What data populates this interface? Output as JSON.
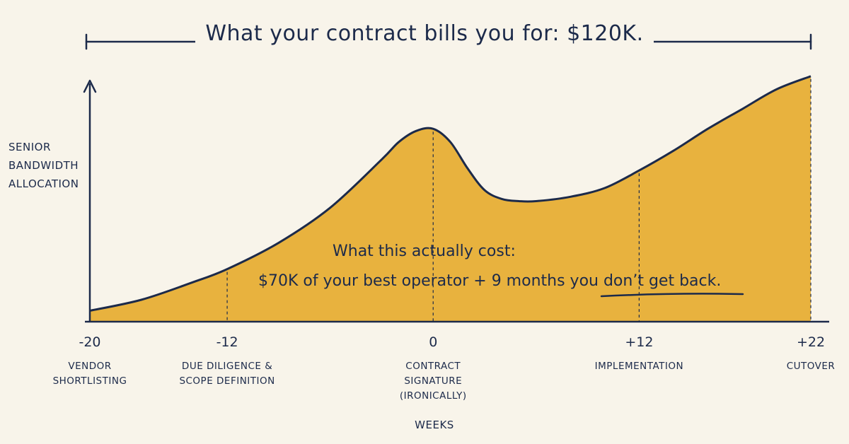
{
  "chart_data": {
    "type": "area",
    "title": "What your contract bills you for: $120K.",
    "ylabel": [
      "SENIOR",
      "BANDWIDTH",
      "ALLOCATION"
    ],
    "xlabel": "WEEKS",
    "xlim": [
      -20,
      22
    ],
    "grid": false,
    "x": [
      -20,
      -17,
      -14,
      -12,
      -9,
      -6,
      -3,
      -2,
      -1,
      0,
      1,
      2,
      3,
      4,
      5,
      6,
      8,
      10,
      12,
      14,
      16,
      18,
      20,
      22
    ],
    "values": [
      5,
      10,
      18,
      24,
      36,
      52,
      74,
      82,
      87,
      88,
      82,
      70,
      60,
      56,
      55,
      55,
      57,
      61,
      69,
      78,
      88,
      97,
      106,
      112
    ],
    "ticks": [
      {
        "x": -20,
        "label": "-20",
        "caption": [
          "VENDOR",
          "SHORTLISTING"
        ]
      },
      {
        "x": -12,
        "label": "-12",
        "caption": [
          "DUE DILIGENCE &",
          "SCOPE DEFINITION"
        ]
      },
      {
        "x": 0,
        "label": "0",
        "caption": [
          "CONTRACT",
          "SIGNATURE",
          "(IRONICALLY)"
        ]
      },
      {
        "x": 12,
        "label": "+12",
        "caption": [
          "IMPLEMENTATION"
        ]
      },
      {
        "x": 22,
        "label": "+22",
        "caption": [
          "CUTOVER"
        ]
      }
    ],
    "annotation": {
      "line1": "What this actually cost:",
      "line2_prefix": "$70K of your best operator + 9 months ",
      "line2_emphasis": "you don’t get back."
    }
  },
  "colors": {
    "background": "#f8f4ea",
    "ink": "#1c2a4a",
    "fill": "#e8b23e"
  }
}
